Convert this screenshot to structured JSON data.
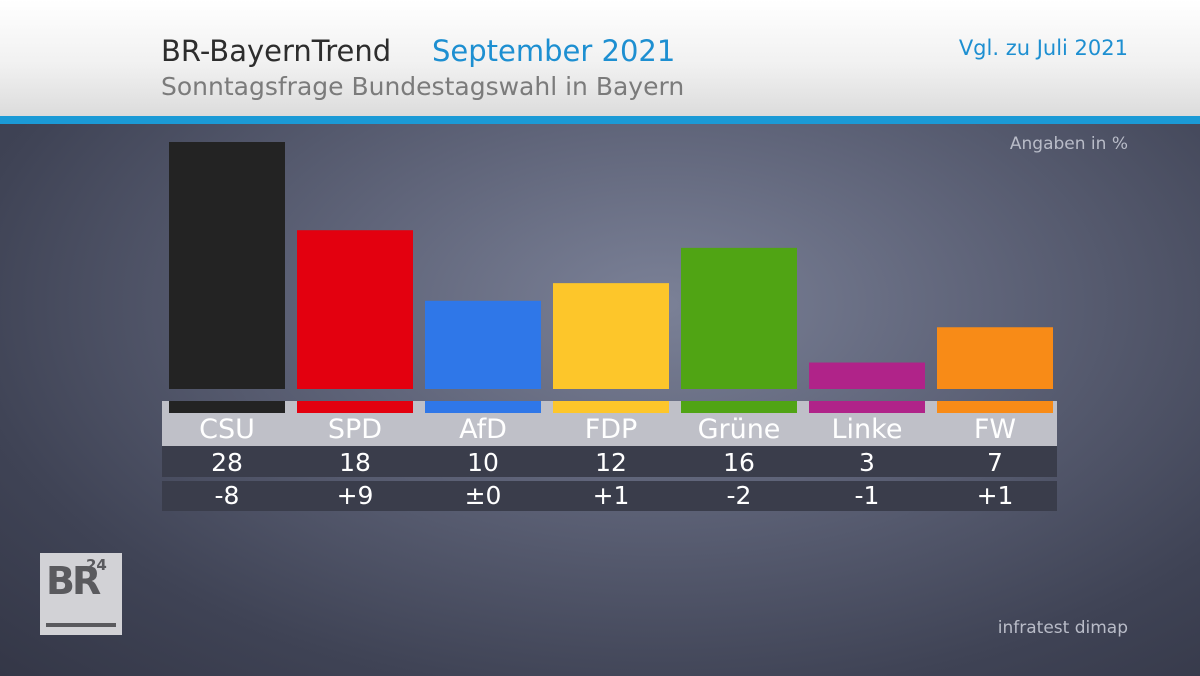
{
  "header": {
    "title": "BR-BayernTrend",
    "date": "September 2021",
    "subtitle": "Sonntagsfrage Bundestagswahl in Bayern",
    "comparison": "Vgl. zu Juli 2021"
  },
  "units_note": "Angaben in %",
  "source": "infratest dimap",
  "logo": {
    "text": "BR",
    "superscript": "24"
  },
  "colors": {
    "accent": "#1d8fd1",
    "header_rule": "#1b9ad6",
    "label_band": "#bfc0c8",
    "row_band": "#3a3d4b",
    "value_text": "#ffffff",
    "label_text": "#ffffff"
  },
  "chart_data": {
    "type": "bar",
    "title": "",
    "xlabel": "",
    "ylabel": "",
    "ylim": [
      0,
      28
    ],
    "categories": [
      "CSU",
      "SPD",
      "AfD",
      "FDP",
      "Grüne",
      "Linke",
      "FW"
    ],
    "values": [
      28,
      18,
      10,
      12,
      16,
      3,
      7
    ],
    "value_labels": [
      "28",
      "18",
      "10",
      "12",
      "16",
      "3",
      "7"
    ],
    "change_labels": [
      "-8",
      "+9",
      "±0",
      "+1",
      "-2",
      "-1",
      "+1"
    ],
    "bar_colors": [
      "#232323",
      "#e3000f",
      "#2f77e8",
      "#fdc62a",
      "#50a414",
      "#b02389",
      "#f88b17"
    ]
  }
}
